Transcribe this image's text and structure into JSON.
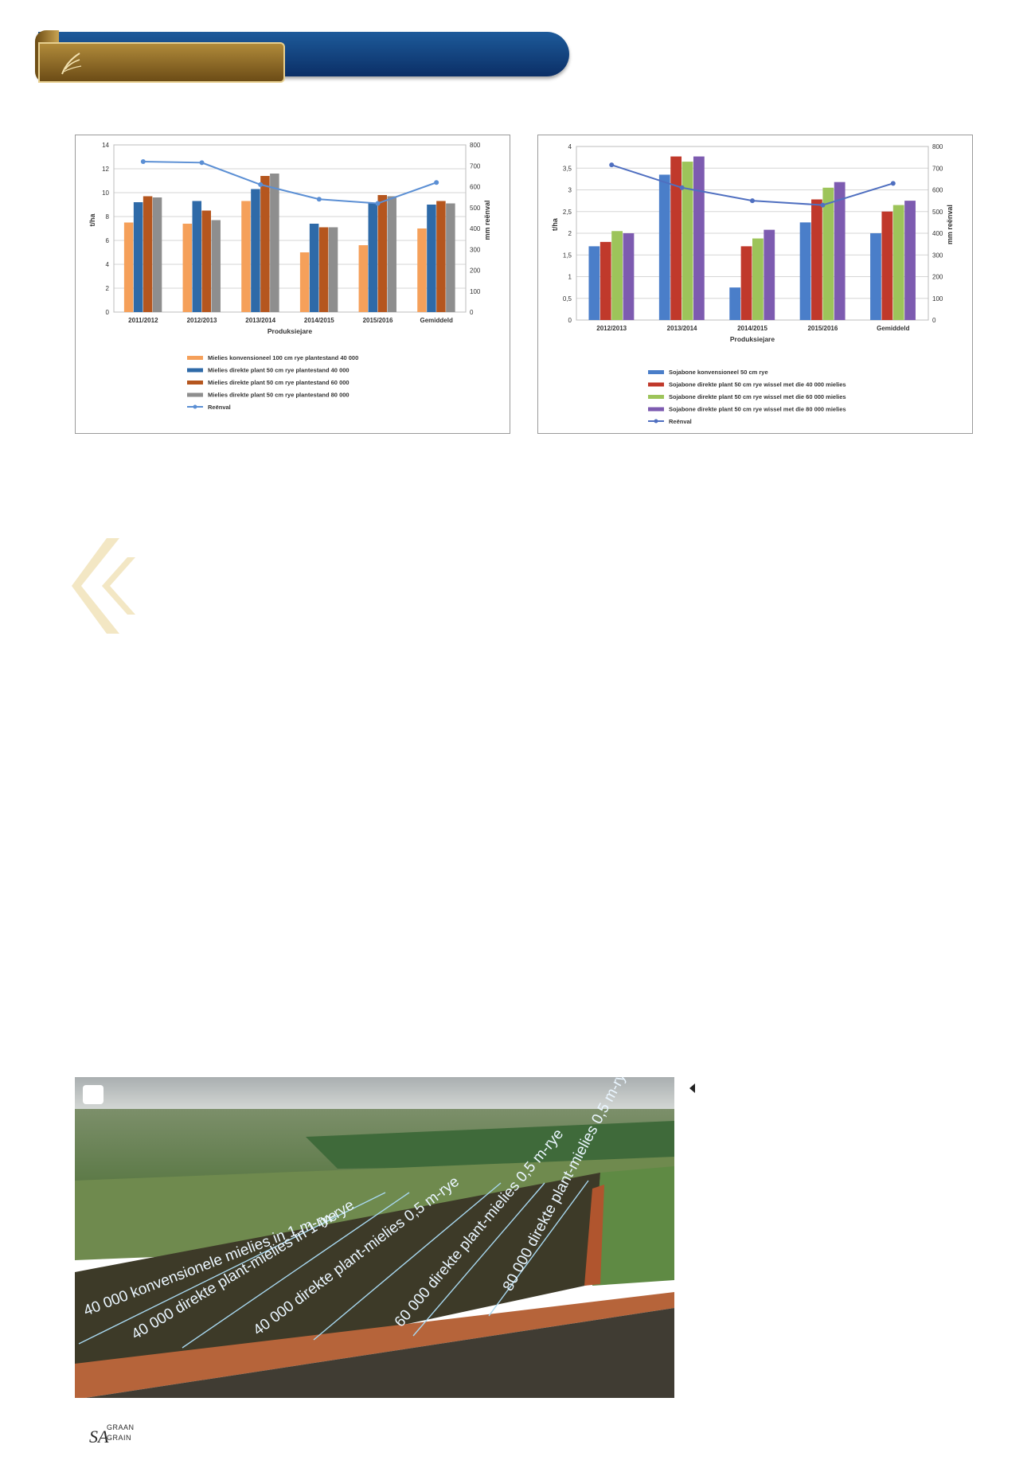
{
  "chart_data": [
    {
      "type": "bar",
      "title": "",
      "xlabel": "Produksiejare",
      "ylabel": "t/ha",
      "y2label": "mm reënval",
      "ylim": [
        0,
        14
      ],
      "y2lim": [
        0,
        800
      ],
      "yticks": [
        "0",
        "2",
        "4",
        "6",
        "8",
        "10",
        "12",
        "14"
      ],
      "y2ticks": [
        "0",
        "100",
        "200",
        "300",
        "400",
        "500",
        "600",
        "700",
        "800"
      ],
      "grid": true,
      "legend": "bottom",
      "categories": [
        "2011/2012",
        "2012/2013",
        "2013/2014",
        "2014/2015",
        "2015/2016",
        "Gemiddeld"
      ],
      "series": [
        {
          "name": "Mielies konvensioneel 100 cm rye plantestand 40 000",
          "color": "#f5a05a",
          "values": [
            7.5,
            7.4,
            9.3,
            5.0,
            5.6,
            7.0
          ]
        },
        {
          "name": "Mielies direkte plant 50 cm rye plantestand 40 000",
          "color": "#2e6aa8",
          "values": [
            9.2,
            9.3,
            10.3,
            7.4,
            9.1,
            9.0
          ]
        },
        {
          "name": "Mielies direkte plant 50 cm rye plantestand 60 000",
          "color": "#b5561e",
          "values": [
            9.7,
            8.5,
            11.4,
            7.1,
            9.8,
            9.3
          ]
        },
        {
          "name": "Mielies direkte plant 50 cm rye plantestand 80 000",
          "color": "#8e8e8e",
          "values": [
            9.6,
            7.7,
            11.6,
            7.1,
            9.7,
            9.1
          ]
        }
      ],
      "line": {
        "name": "Reënval",
        "color": "#5b8fd4",
        "values": [
          720,
          715,
          610,
          540,
          520,
          620
        ]
      }
    },
    {
      "type": "bar",
      "title": "",
      "xlabel": "Produksiejare",
      "ylabel": "t/ha",
      "y2label": "mm reënval",
      "ylim": [
        0,
        4
      ],
      "y2lim": [
        0,
        800
      ],
      "yticks": [
        "0",
        "0,5",
        "1",
        "1,5",
        "2",
        "2,5",
        "3",
        "3,5",
        "4"
      ],
      "y2ticks": [
        "0",
        "100",
        "200",
        "300",
        "400",
        "500",
        "600",
        "700",
        "800"
      ],
      "grid": true,
      "legend": "bottom",
      "categories": [
        "2012/2013",
        "2013/2014",
        "2014/2015",
        "2015/2016",
        "Gemiddeld"
      ],
      "series": [
        {
          "name": "Sojabone konvensioneel 50 cm rye",
          "color": "#4a7ec9",
          "values": [
            1.7,
            3.35,
            0.75,
            2.25,
            2.0
          ]
        },
        {
          "name": "Sojabone direkte plant 50 cm rye wissel met die 40 000 mielies",
          "color": "#c0392b",
          "values": [
            1.8,
            3.77,
            1.7,
            2.78,
            2.5
          ]
        },
        {
          "name": "Sojabone direkte plant 50 cm rye wissel met die 60 000 mielies",
          "color": "#9dc45a",
          "values": [
            2.05,
            3.65,
            1.88,
            3.05,
            2.65
          ]
        },
        {
          "name": "Sojabone direkte plant 50 cm rye wissel met die 80 000 mielies",
          "color": "#7d5bb0",
          "values": [
            2.0,
            3.77,
            2.08,
            3.18,
            2.75
          ]
        }
      ],
      "line": {
        "name": "Reënval",
        "color": "#4f6fc0",
        "values": [
          715,
          610,
          550,
          530,
          630
        ]
      }
    }
  ],
  "photo": {
    "labels": [
      "40 000 konvensionele mielies in 1 m-rye",
      "40 000 direkte plant-mielies in 1 m-rye",
      "40 000 direkte plant-mielies 0,5 m-rye",
      "60 000 direkte plant-mielies 0,5 m-rye",
      "80 000 direkte plant-mielies 0,5 m-rye"
    ]
  },
  "footer": {
    "logo_sa": "SA",
    "logo_graan": "GRAAN",
    "logo_grain": "GRAIN"
  },
  "colors": {
    "banner_blue": "#0b2f66",
    "banner_gold": "#8a6522",
    "quote_mark": "#f3e7c4"
  }
}
